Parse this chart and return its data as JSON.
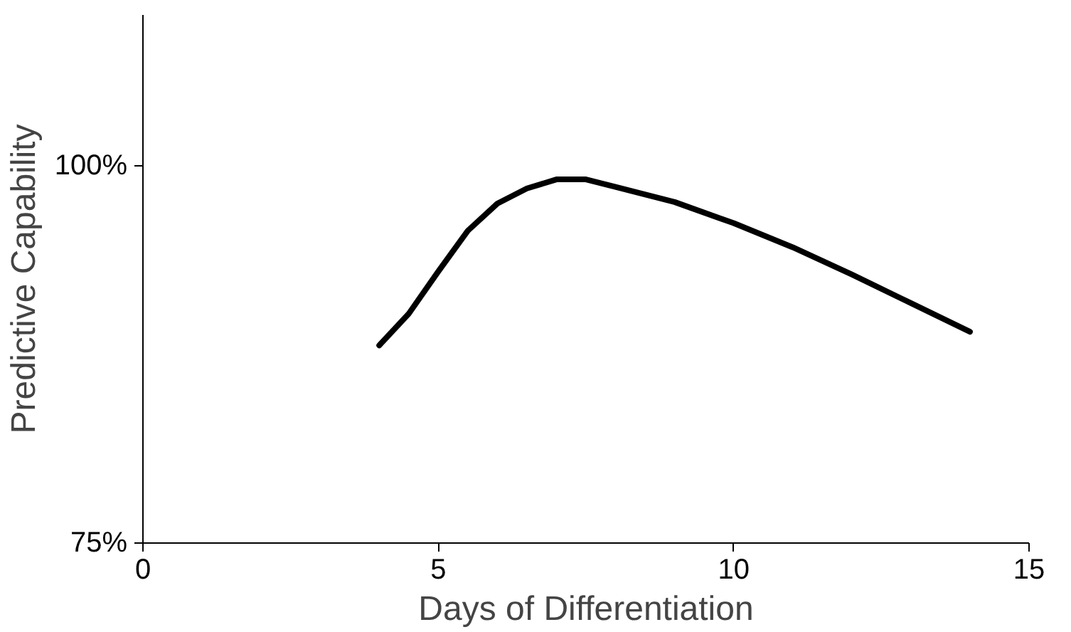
{
  "chart_data": {
    "type": "line",
    "xlabel": "Days of Differentiation",
    "ylabel": "Predictive Capability",
    "x": [
      4,
      4.5,
      5,
      5.5,
      6,
      6.5,
      7,
      7.5,
      8,
      9,
      10,
      11,
      12,
      13,
      14
    ],
    "series": [
      {
        "color": "#000000",
        "values": [
          88.1,
          90.2,
          93.0,
          95.7,
          97.5,
          98.5,
          99.1,
          99.1,
          98.6,
          97.6,
          96.2,
          94.6,
          92.8,
          90.9,
          89.0
        ]
      }
    ],
    "xlim": [
      0,
      15
    ],
    "xticks": [
      0,
      5,
      10,
      15
    ],
    "ylim": [
      75,
      110
    ],
    "yticks": [
      {
        "value": 75,
        "label": "75%"
      },
      {
        "value": 100,
        "label": "100%"
      }
    ],
    "grid": false,
    "marker": "none",
    "line_style": "solid"
  }
}
